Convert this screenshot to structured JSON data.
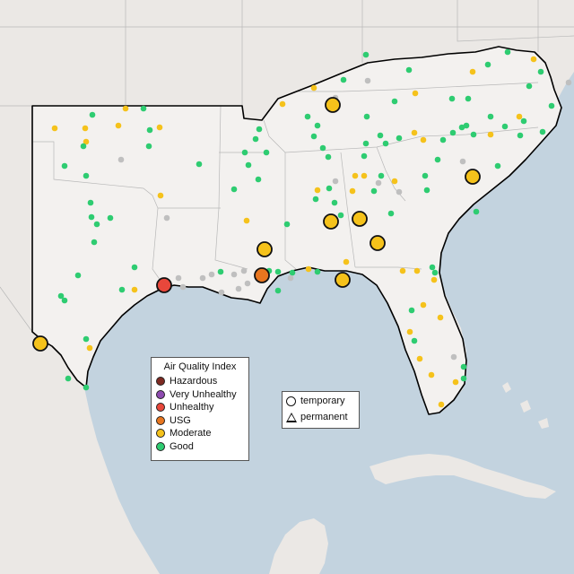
{
  "legend": {
    "title": "Air Quality Index",
    "categories": [
      {
        "label": "Hazardous",
        "color": "#7e2a22"
      },
      {
        "label": "Very Unhealthy",
        "color": "#8e4bb0"
      },
      {
        "label": "Unhealthy",
        "color": "#e8473b"
      },
      {
        "label": "USG",
        "color": "#e8761f"
      },
      {
        "label": "Moderate",
        "color": "#f5c21b"
      },
      {
        "label": "Good",
        "color": "#2ecc71"
      }
    ]
  },
  "type_legend": {
    "temporary": "temporary",
    "permanent": "permanent"
  },
  "colors": {
    "water": "#c3d3df",
    "land": "#ece9e6",
    "region": "#f2f0ee",
    "border": "#000000",
    "no_data": "#bfbfbf"
  }
}
